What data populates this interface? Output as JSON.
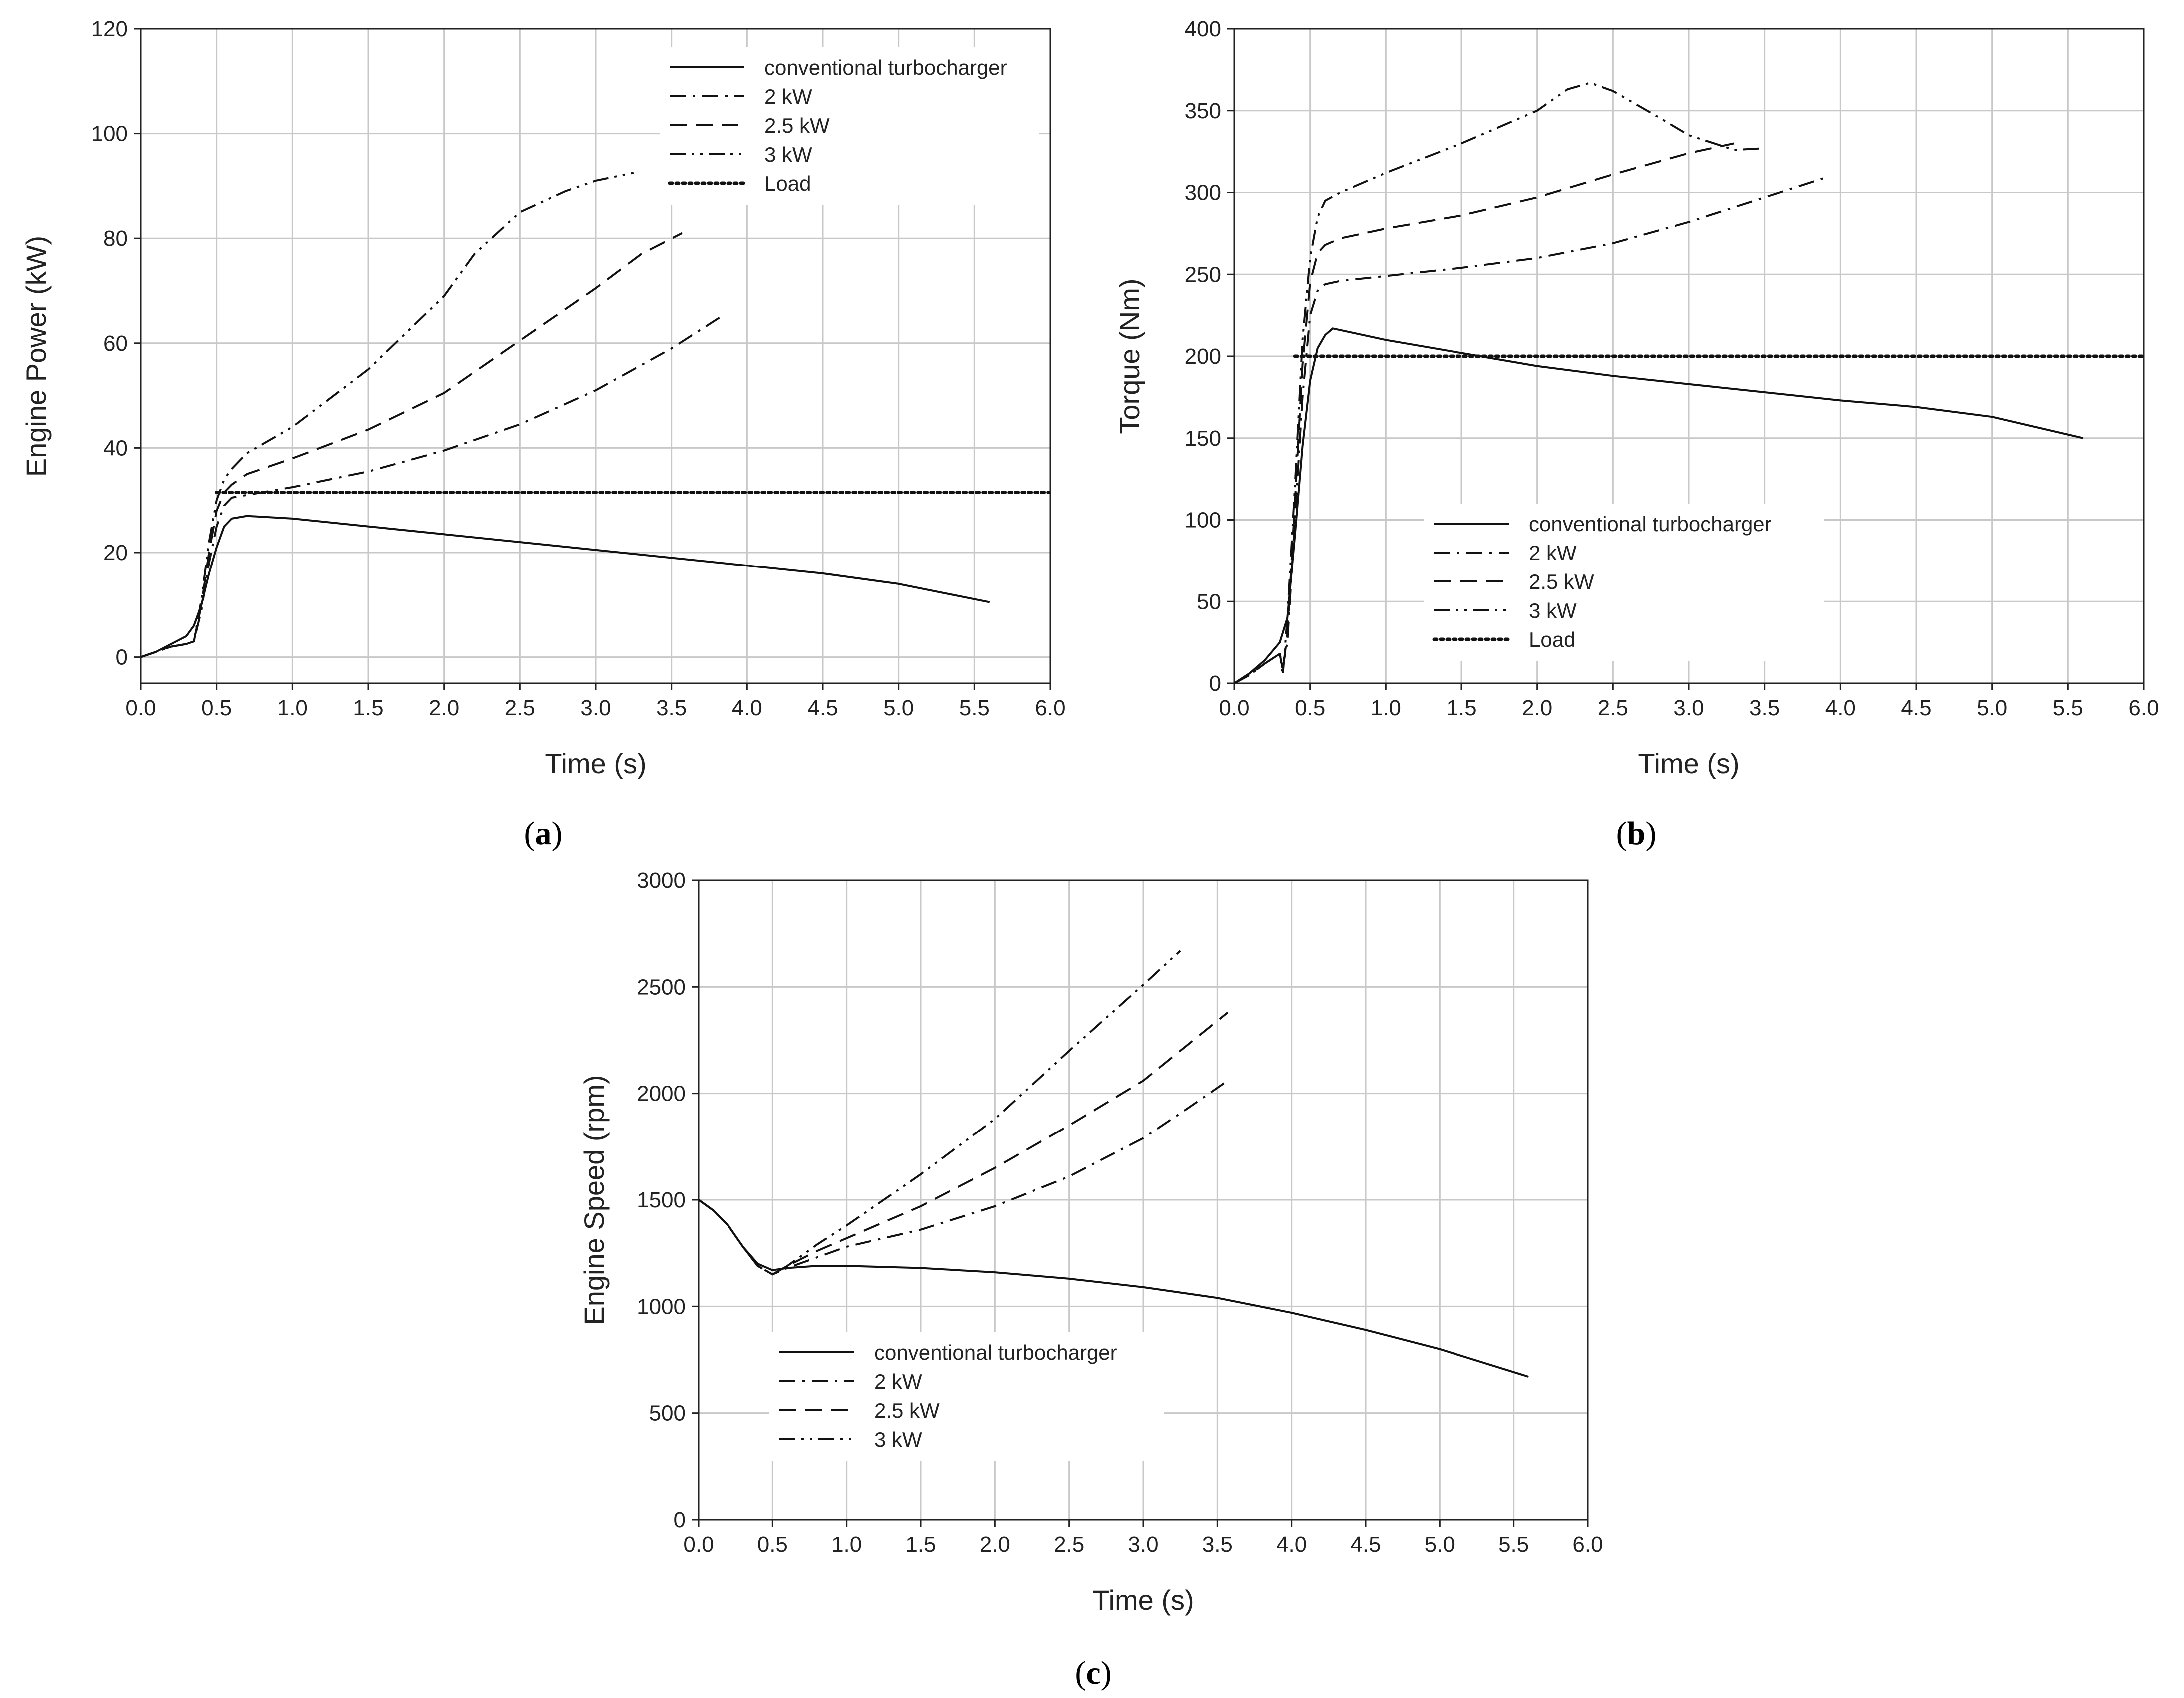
{
  "figure": {
    "captions": [
      "(a)",
      "(b)",
      "(c)"
    ],
    "caption_parts": [
      {
        "open": "(",
        "letter": "a",
        "close": ")"
      },
      {
        "open": "(",
        "letter": "b",
        "close": ")"
      },
      {
        "open": "(",
        "letter": "c",
        "close": ")"
      }
    ]
  },
  "colors": {
    "line": "#111111",
    "grid": "#c8c8c8",
    "axis": "#222222"
  },
  "chart_data": [
    {
      "id": "a",
      "type": "line",
      "xlabel": "Time (s)",
      "ylabel": "Engine Power (kW)",
      "xlim": [
        0,
        6
      ],
      "ylim": [
        -5,
        120
      ],
      "xticks": [
        "0.0",
        "0.5",
        "1.0",
        "1.5",
        "2.0",
        "2.5",
        "3.0",
        "3.5",
        "4.0",
        "4.5",
        "5.0",
        "5.5",
        "6.0"
      ],
      "yticks": [
        "0",
        "20",
        "40",
        "60",
        "80",
        "100",
        "120"
      ],
      "legend_position": "top-right",
      "series": [
        {
          "name": "conventional turbocharger",
          "style": "solid",
          "x": [
            0,
            0.1,
            0.2,
            0.3,
            0.35,
            0.4,
            0.45,
            0.5,
            0.55,
            0.6,
            0.7,
            1.0,
            1.5,
            2.0,
            2.5,
            3.0,
            3.5,
            4.0,
            4.5,
            5.0,
            5.6
          ],
          "y": [
            0,
            1,
            2.5,
            4,
            6,
            10,
            16,
            21,
            25,
            26.5,
            27,
            26.5,
            25,
            23.5,
            22,
            20.5,
            19,
            17.5,
            16,
            14,
            10.5
          ]
        },
        {
          "name": "2 kW",
          "style": "dashdot",
          "x": [
            0,
            0.1,
            0.2,
            0.3,
            0.35,
            0.4,
            0.45,
            0.5,
            0.55,
            0.6,
            0.7,
            1.0,
            1.5,
            2.0,
            2.5,
            3.0,
            3.5,
            3.85
          ],
          "y": [
            0,
            1,
            2,
            2.5,
            3,
            9,
            18,
            25,
            29,
            30.5,
            31,
            32.5,
            35.5,
            39.5,
            44.5,
            51,
            59,
            65.5
          ]
        },
        {
          "name": "2.5 kW",
          "style": "dashed",
          "x": [
            0,
            0.1,
            0.2,
            0.3,
            0.35,
            0.4,
            0.45,
            0.5,
            0.55,
            0.6,
            0.7,
            1.0,
            1.5,
            2.0,
            2.5,
            3.0,
            3.3,
            3.57
          ],
          "y": [
            0,
            1,
            2,
            2.5,
            3,
            10,
            20,
            28,
            31.5,
            33,
            35,
            38,
            43.5,
            50.5,
            60.5,
            70.5,
            77,
            81
          ]
        },
        {
          "name": "3 kW",
          "style": "dashdotdot",
          "x": [
            0,
            0.1,
            0.2,
            0.3,
            0.35,
            0.4,
            0.45,
            0.5,
            0.55,
            0.6,
            0.7,
            1.0,
            1.5,
            2.0,
            2.2,
            2.5,
            2.8,
            3.0,
            3.25
          ],
          "y": [
            0,
            1,
            2,
            2.5,
            3,
            11,
            22,
            30,
            34,
            36,
            39,
            44,
            55,
            69,
            77,
            85,
            89,
            91,
            92.5
          ]
        },
        {
          "name": "Load",
          "style": "dotted",
          "x": [
            0.5,
            6.0
          ],
          "y": [
            31.5,
            31.5
          ]
        }
      ]
    },
    {
      "id": "b",
      "type": "line",
      "xlabel": "Time (s)",
      "ylabel": "Torque (Nm)",
      "xlim": [
        0,
        6
      ],
      "ylim": [
        0,
        400
      ],
      "xticks": [
        "0.0",
        "0.5",
        "1.0",
        "1.5",
        "2.0",
        "2.5",
        "3.0",
        "3.5",
        "4.0",
        "4.5",
        "5.0",
        "5.5",
        "6.0"
      ],
      "yticks": [
        "0",
        "50",
        "100",
        "150",
        "200",
        "250",
        "300",
        "350",
        "400"
      ],
      "legend_position": "bottom-left",
      "series": [
        {
          "name": "conventional turbocharger",
          "style": "solid",
          "x": [
            0,
            0.1,
            0.2,
            0.3,
            0.35,
            0.4,
            0.45,
            0.5,
            0.55,
            0.6,
            0.65,
            0.7,
            1.0,
            1.5,
            2.0,
            2.5,
            3.0,
            3.5,
            4.0,
            4.5,
            5.0,
            5.6
          ],
          "y": [
            0,
            6,
            14,
            25,
            40,
            90,
            145,
            185,
            205,
            213,
            217,
            216,
            210,
            202,
            194,
            188,
            183,
            178,
            173,
            169,
            163,
            150
          ]
        },
        {
          "name": "2 kW",
          "style": "dashdot",
          "x": [
            0,
            0.1,
            0.2,
            0.3,
            0.32,
            0.35,
            0.4,
            0.45,
            0.5,
            0.55,
            0.6,
            0.7,
            1.0,
            1.5,
            2.0,
            2.5,
            3.0,
            3.5,
            3.9
          ],
          "y": [
            0,
            5,
            12,
            18,
            10,
            25,
            100,
            175,
            225,
            240,
            244,
            246,
            249,
            254,
            260,
            269,
            282,
            297,
            309
          ]
        },
        {
          "name": "2.5 kW",
          "style": "dashed",
          "x": [
            0,
            0.1,
            0.2,
            0.3,
            0.32,
            0.35,
            0.4,
            0.45,
            0.5,
            0.55,
            0.6,
            0.7,
            1.0,
            1.5,
            2.0,
            2.5,
            3.0,
            3.3
          ],
          "y": [
            0,
            5,
            12,
            18,
            8,
            30,
            110,
            195,
            245,
            263,
            268,
            272,
            278,
            286,
            297,
            311,
            324,
            330
          ]
        },
        {
          "name": "3 kW",
          "style": "dashdotdot",
          "x": [
            0,
            0.1,
            0.2,
            0.3,
            0.32,
            0.35,
            0.4,
            0.45,
            0.5,
            0.55,
            0.6,
            0.7,
            1.0,
            1.5,
            2.0,
            2.2,
            2.35,
            2.5,
            2.8,
            3.0,
            3.3,
            3.5
          ],
          "y": [
            0,
            5,
            12,
            18,
            5,
            40,
            120,
            210,
            260,
            285,
            295,
            300,
            312,
            330,
            350,
            363,
            367,
            362,
            346,
            335,
            326,
            327
          ]
        },
        {
          "name": "Load",
          "style": "dotted",
          "x": [
            0.4,
            6.0
          ],
          "y": [
            200,
            200
          ]
        }
      ]
    },
    {
      "id": "c",
      "type": "line",
      "xlabel": "Time (s)",
      "ylabel": "Engine Speed (rpm)",
      "xlim": [
        0,
        6
      ],
      "ylim": [
        0,
        3000
      ],
      "xticks": [
        "0.0",
        "0.5",
        "1.0",
        "1.5",
        "2.0",
        "2.5",
        "3.0",
        "3.5",
        "4.0",
        "4.5",
        "5.0",
        "5.5",
        "6.0"
      ],
      "yticks": [
        "0",
        "500",
        "1000",
        "1500",
        "2000",
        "2500",
        "3000"
      ],
      "legend_position": "bottom-left",
      "series": [
        {
          "name": "conventional turbocharger",
          "style": "solid",
          "x": [
            0,
            0.1,
            0.2,
            0.3,
            0.4,
            0.5,
            0.6,
            0.8,
            1.0,
            1.5,
            2.0,
            2.5,
            3.0,
            3.5,
            4.0,
            4.5,
            5.0,
            5.6
          ],
          "y": [
            1500,
            1450,
            1380,
            1280,
            1200,
            1170,
            1180,
            1190,
            1190,
            1180,
            1160,
            1130,
            1090,
            1040,
            970,
            890,
            800,
            670
          ]
        },
        {
          "name": "2 kW",
          "style": "dashdot",
          "x": [
            0,
            0.1,
            0.2,
            0.3,
            0.4,
            0.5,
            0.6,
            0.8,
            1.0,
            1.5,
            2.0,
            2.5,
            3.0,
            3.3,
            3.57
          ],
          "y": [
            1500,
            1450,
            1380,
            1280,
            1190,
            1150,
            1180,
            1230,
            1280,
            1360,
            1470,
            1610,
            1790,
            1930,
            2060
          ]
        },
        {
          "name": "2.5 kW",
          "style": "dashed",
          "x": [
            0,
            0.1,
            0.2,
            0.3,
            0.4,
            0.5,
            0.6,
            0.8,
            1.0,
            1.5,
            2.0,
            2.5,
            3.0,
            3.57
          ],
          "y": [
            1500,
            1450,
            1380,
            1280,
            1190,
            1150,
            1190,
            1260,
            1320,
            1470,
            1650,
            1850,
            2060,
            2380
          ]
        },
        {
          "name": "3 kW",
          "style": "dashdotdot",
          "x": [
            0,
            0.1,
            0.2,
            0.3,
            0.4,
            0.5,
            0.6,
            0.8,
            1.0,
            1.5,
            2.0,
            2.5,
            3.0,
            3.25
          ],
          "y": [
            1500,
            1450,
            1380,
            1280,
            1190,
            1150,
            1190,
            1290,
            1380,
            1620,
            1880,
            2200,
            2510,
            2670
          ]
        }
      ]
    }
  ]
}
